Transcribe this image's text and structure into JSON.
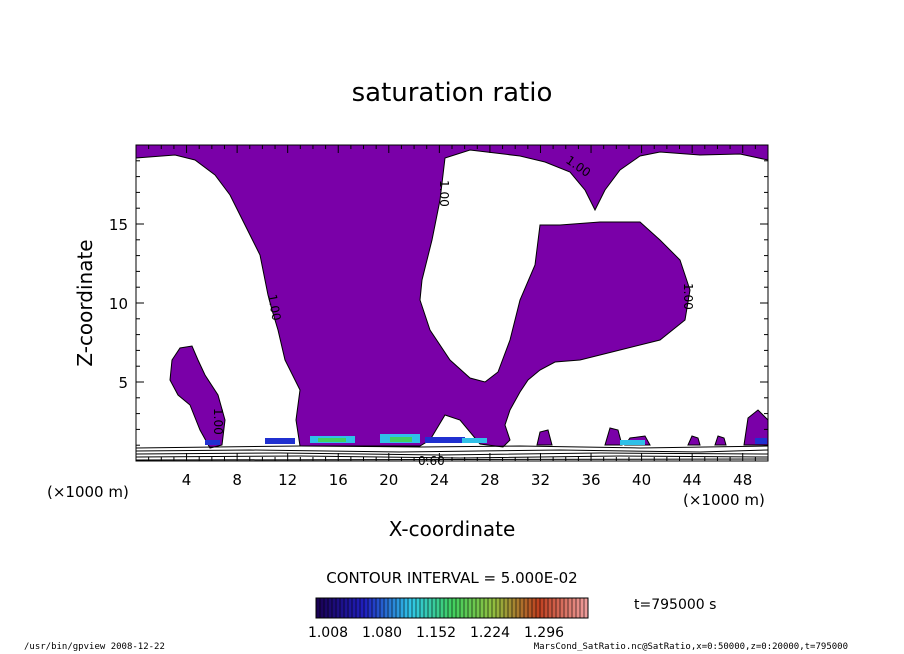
{
  "chart_data": {
    "type": "contour",
    "title": "saturation ratio",
    "xlabel": "X-coordinate",
    "ylabel": "Z-coordinate",
    "x_unit_left": "(×1000 m)",
    "x_unit_right": "(×1000 m)",
    "xlim": [
      0,
      50
    ],
    "ylim": [
      0,
      20
    ],
    "x_ticks": [
      4,
      8,
      12,
      16,
      20,
      24,
      28,
      32,
      36,
      40,
      44,
      48
    ],
    "y_ticks": [
      5,
      10,
      15
    ],
    "contour_interval": "CONTOUR INTERVAL = 5.000E-02",
    "contour_labels": [
      "1.00",
      "1.00",
      "1.00",
      "1.00",
      "1.00",
      "0.60"
    ],
    "fill_color": "#7a00a8",
    "colorbar": {
      "labels": [
        "1.008",
        "1.080",
        "1.152",
        "1.224",
        "1.296"
      ],
      "min": 1.008,
      "max": 1.296
    },
    "time_label": "t=795000  s"
  },
  "footer": {
    "left": "/usr/bin/gpview   2008-12-22",
    "right": "MarsCond_SatRatio.nc@SatRatio,x=0:50000,z=0:20000,t=795000"
  }
}
